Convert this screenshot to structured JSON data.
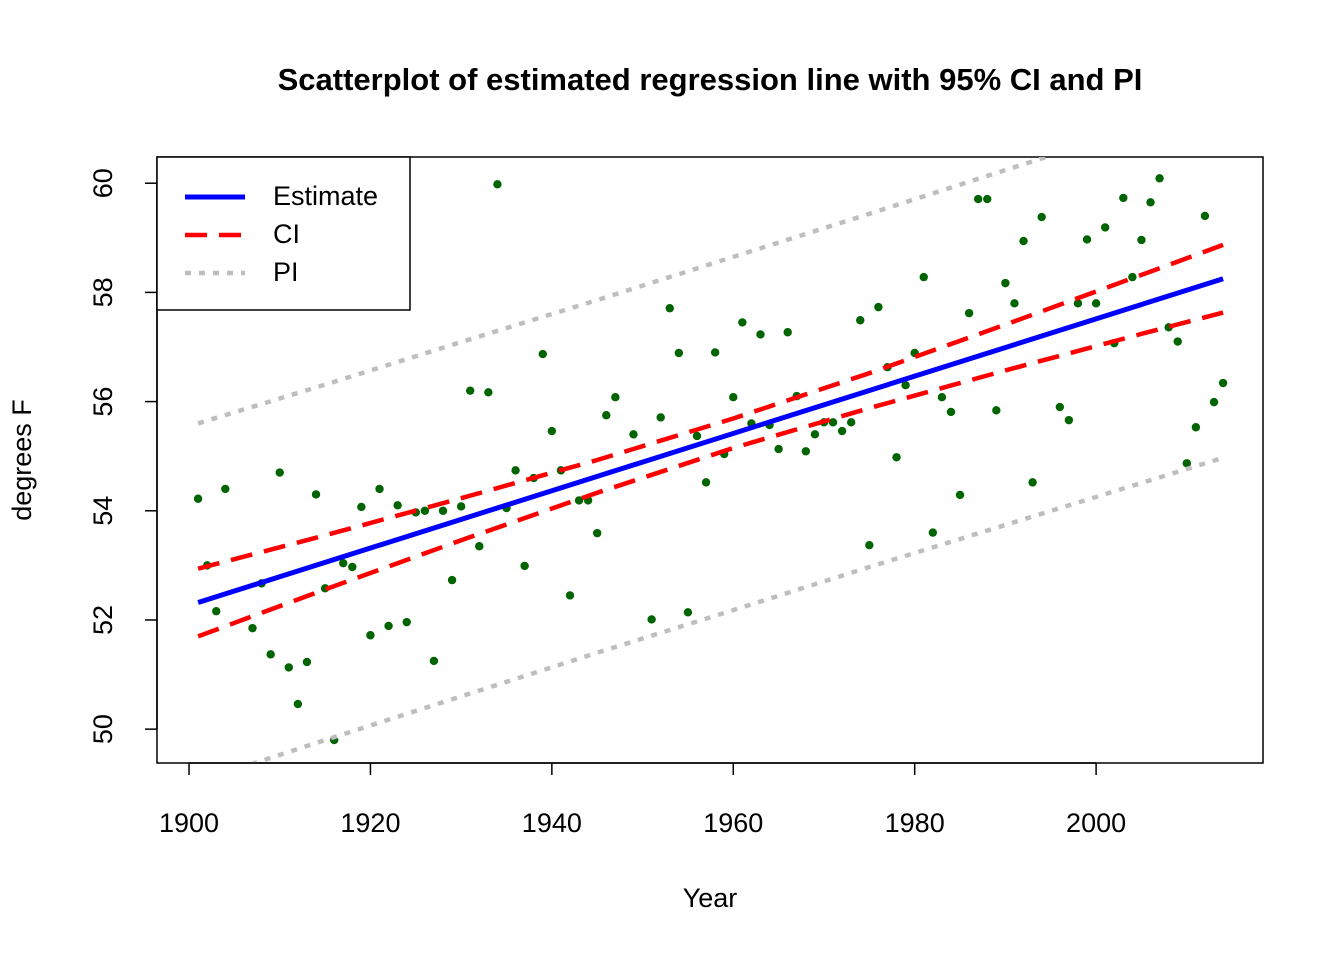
{
  "chart_data": {
    "type": "scatter",
    "title": "Scatterplot of estimated regression line with 95% CI and PI",
    "x_label": "Year",
    "y_label": "degrees F",
    "xlim": [
      1896.47,
      2018.4
    ],
    "ylim": [
      49.38,
      60.48
    ],
    "xticks": [
      1900,
      1920,
      1940,
      1960,
      1980,
      2000
    ],
    "yticks": [
      50,
      52,
      54,
      56,
      58,
      60
    ],
    "legend": "top-left",
    "points": {
      "color": "#006400",
      "x": [
        1901,
        1902,
        1903,
        1904,
        1907,
        1908,
        1909,
        1910,
        1911,
        1912,
        1913,
        1914,
        1915,
        1916,
        1917,
        1918,
        1919,
        1920,
        1921,
        1922,
        1923,
        1924,
        1925,
        1926,
        1927,
        1928,
        1929,
        1930,
        1931,
        1932,
        1933,
        1934,
        1935,
        1936,
        1937,
        1938,
        1939,
        1940,
        1941,
        1942,
        1943,
        1944,
        1945,
        1946,
        1947,
        1949,
        1951,
        1952,
        1953,
        1954,
        1955,
        1956,
        1957,
        1958,
        1959,
        1960,
        1961,
        1962,
        1963,
        1964,
        1965,
        1966,
        1967,
        1968,
        1969,
        1970,
        1971,
        1972,
        1973,
        1974,
        1975,
        1976,
        1977,
        1978,
        1979,
        1980,
        1981,
        1982,
        1983,
        1984,
        1985,
        1986,
        1987,
        1988,
        1989,
        1990,
        1991,
        1992,
        1993,
        1994,
        1996,
        1997,
        1998,
        1999,
        2000,
        2001,
        2002,
        2003,
        2004,
        2005,
        2006,
        2007,
        2008,
        2009,
        2010,
        2011,
        2012,
        2013,
        2014
      ],
      "values": [
        54.22,
        53.0,
        52.16,
        54.4,
        51.85,
        52.67,
        51.37,
        54.7,
        51.13,
        50.46,
        51.23,
        54.3,
        52.58,
        49.8,
        53.04,
        52.97,
        54.07,
        51.72,
        54.4,
        51.89,
        54.1,
        51.96,
        53.97,
        54.0,
        51.25,
        54.0,
        52.73,
        54.08,
        56.2,
        53.35,
        56.17,
        59.98,
        54.05,
        54.74,
        52.99,
        54.6,
        56.87,
        55.46,
        54.74,
        52.45,
        54.19,
        54.19,
        53.59,
        55.75,
        56.08,
        55.4,
        52.01,
        55.71,
        57.71,
        56.89,
        52.14,
        55.37,
        54.52,
        56.9,
        55.04,
        56.08,
        57.45,
        55.6,
        57.23,
        55.57,
        55.13,
        57.27,
        56.1,
        55.09,
        55.4,
        55.62,
        55.62,
        55.46,
        55.62,
        57.49,
        53.37,
        57.73,
        56.63,
        54.98,
        56.3,
        56.89,
        58.28,
        53.6,
        56.08,
        55.81,
        54.29,
        57.62,
        59.71,
        59.71,
        55.84,
        58.17,
        57.8,
        58.94,
        54.52,
        59.38,
        55.9,
        55.66,
        57.8,
        58.97,
        57.8,
        59.19,
        57.07,
        59.73,
        58.28,
        58.96,
        59.65,
        60.09,
        57.36,
        57.1,
        54.87,
        55.53,
        59.4,
        55.99,
        56.34
      ]
    },
    "series": [
      {
        "name": "Estimate",
        "color": "#0000ff",
        "line_style": "solid",
        "x": [
          1901,
          2014
        ],
        "values": [
          52.32,
          58.25
        ]
      },
      {
        "name": "CI",
        "color": "#ff0000",
        "line_style": "dashed",
        "x": [
          1901,
          1915,
          1930,
          1945,
          1960,
          1975,
          1990,
          2005,
          2014
        ],
        "upper": [
          52.94,
          53.55,
          54.23,
          54.93,
          55.69,
          56.52,
          57.41,
          58.32,
          58.87
        ],
        "lower": [
          51.7,
          52.56,
          53.46,
          54.33,
          55.15,
          55.88,
          56.57,
          57.24,
          57.63
        ]
      },
      {
        "name": "PI",
        "color": "#bebebe",
        "line_style": "dotted",
        "x": [
          1901,
          1915,
          1930,
          1945,
          1960,
          1975,
          1990,
          2005,
          2014
        ],
        "upper": [
          55.6,
          56.31,
          57.09,
          57.86,
          58.65,
          59.44,
          60.24,
          61.04,
          61.53
        ],
        "lower": [
          49.04,
          49.8,
          50.6,
          51.4,
          52.18,
          52.97,
          53.74,
          54.51,
          54.97
        ]
      }
    ]
  }
}
